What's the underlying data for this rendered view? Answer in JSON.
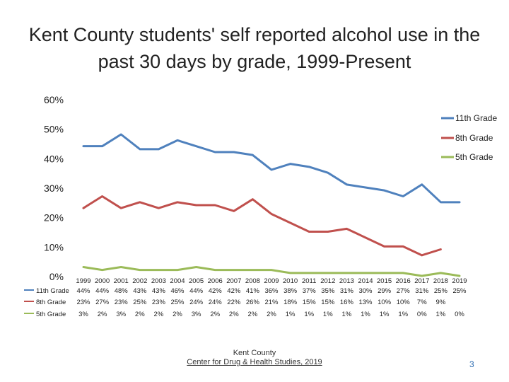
{
  "slide": {
    "title": "Kent County students' self reported alcohol use in the past 30 days by grade, 1999-Present",
    "footer_org": "Kent County",
    "footer_source": "Center for Drug & Health Studies, 2019",
    "page_number": "3"
  },
  "colors": {
    "11th Grade": "#4f81bd",
    "8th Grade": "#c0504d",
    "5th Grade": "#9bbb59"
  },
  "chart_data": {
    "type": "line",
    "title": "",
    "xlabel": "",
    "ylabel": "",
    "ylim": [
      0,
      60
    ],
    "y_ticks": [
      "0%",
      "10%",
      "20%",
      "30%",
      "40%",
      "50%",
      "60%"
    ],
    "legend_position": "right",
    "categories": [
      "1999",
      "2000",
      "2001",
      "2002",
      "2003",
      "2004",
      "2005",
      "2006",
      "2007",
      "2008",
      "2009",
      "2010",
      "2011",
      "2012",
      "2013",
      "2014",
      "2015",
      "2016",
      "2017",
      "2018",
      "2019"
    ],
    "series": [
      {
        "name": "11th Grade",
        "values": [
          44,
          44,
          48,
          43,
          43,
          46,
          44,
          42,
          42,
          41,
          36,
          38,
          37,
          35,
          31,
          30,
          29,
          27,
          31,
          25,
          25
        ],
        "labels": [
          "44%",
          "44%",
          "48%",
          "43%",
          "43%",
          "46%",
          "44%",
          "42%",
          "42%",
          "41%",
          "36%",
          "38%",
          "37%",
          "35%",
          "31%",
          "30%",
          "29%",
          "27%",
          "31%",
          "25%",
          "25%"
        ]
      },
      {
        "name": "8th Grade",
        "values": [
          23,
          27,
          23,
          25,
          23,
          25,
          24,
          24,
          22,
          26,
          21,
          18,
          15,
          15,
          16,
          13,
          10,
          10,
          7,
          9,
          null
        ],
        "labels": [
          "23%",
          "27%",
          "23%",
          "25%",
          "23%",
          "25%",
          "24%",
          "24%",
          "22%",
          "26%",
          "21%",
          "18%",
          "15%",
          "15%",
          "16%",
          "13%",
          "10%",
          "10%",
          "7%",
          "9%",
          ""
        ]
      },
      {
        "name": "5th Grade",
        "values": [
          3,
          2,
          3,
          2,
          2,
          2,
          3,
          2,
          2,
          2,
          2,
          1,
          1,
          1,
          1,
          1,
          1,
          1,
          0,
          1,
          0
        ],
        "labels": [
          "3%",
          "2%",
          "3%",
          "2%",
          "2%",
          "2%",
          "3%",
          "2%",
          "2%",
          "2%",
          "2%",
          "1%",
          "1%",
          "1%",
          "1%",
          "1%",
          "1%",
          "1%",
          "0%",
          "1%",
          "0%"
        ]
      }
    ]
  }
}
